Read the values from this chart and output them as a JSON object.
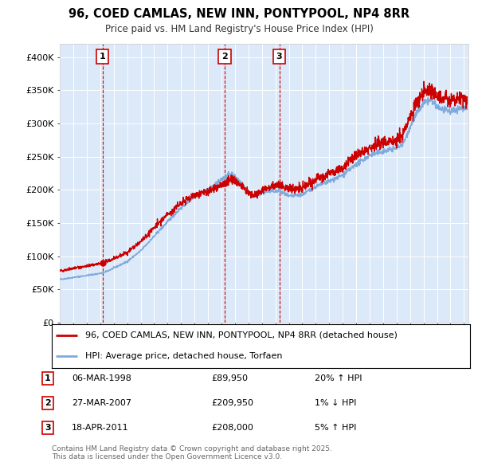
{
  "title": "96, COED CAMLAS, NEW INN, PONTYPOOL, NP4 8RR",
  "subtitle": "Price paid vs. HM Land Registry's House Price Index (HPI)",
  "sales": [
    {
      "date": "1998-03-06",
      "price": 89950,
      "label": "1"
    },
    {
      "date": "2007-03-27",
      "price": 209950,
      "label": "2"
    },
    {
      "date": "2011-04-18",
      "price": 208000,
      "label": "3"
    }
  ],
  "table_rows": [
    {
      "num": "1",
      "date": "06-MAR-1998",
      "price": "£89,950",
      "change": "20% ↑ HPI"
    },
    {
      "num": "2",
      "date": "27-MAR-2007",
      "price": "£209,950",
      "change": "1% ↓ HPI"
    },
    {
      "num": "3",
      "date": "18-APR-2011",
      "price": "£208,000",
      "change": "5% ↑ HPI"
    }
  ],
  "legend_line1": "96, COED CAMLAS, NEW INN, PONTYPOOL, NP4 8RR (detached house)",
  "legend_line2": "HPI: Average price, detached house, Torfaen",
  "footer": "Contains HM Land Registry data © Crown copyright and database right 2025.\nThis data is licensed under the Open Government Licence v3.0.",
  "bg_color": "#dce9f8",
  "red_line_color": "#cc0000",
  "blue_line_color": "#7faadd",
  "ylim": [
    0,
    420000
  ],
  "yticks": [
    0,
    50000,
    100000,
    150000,
    200000,
    250000,
    300000,
    350000,
    400000
  ],
  "ytick_labels": [
    "£0",
    "£50K",
    "£100K",
    "£150K",
    "£200K",
    "£250K",
    "£300K",
    "£350K",
    "£400K"
  ]
}
